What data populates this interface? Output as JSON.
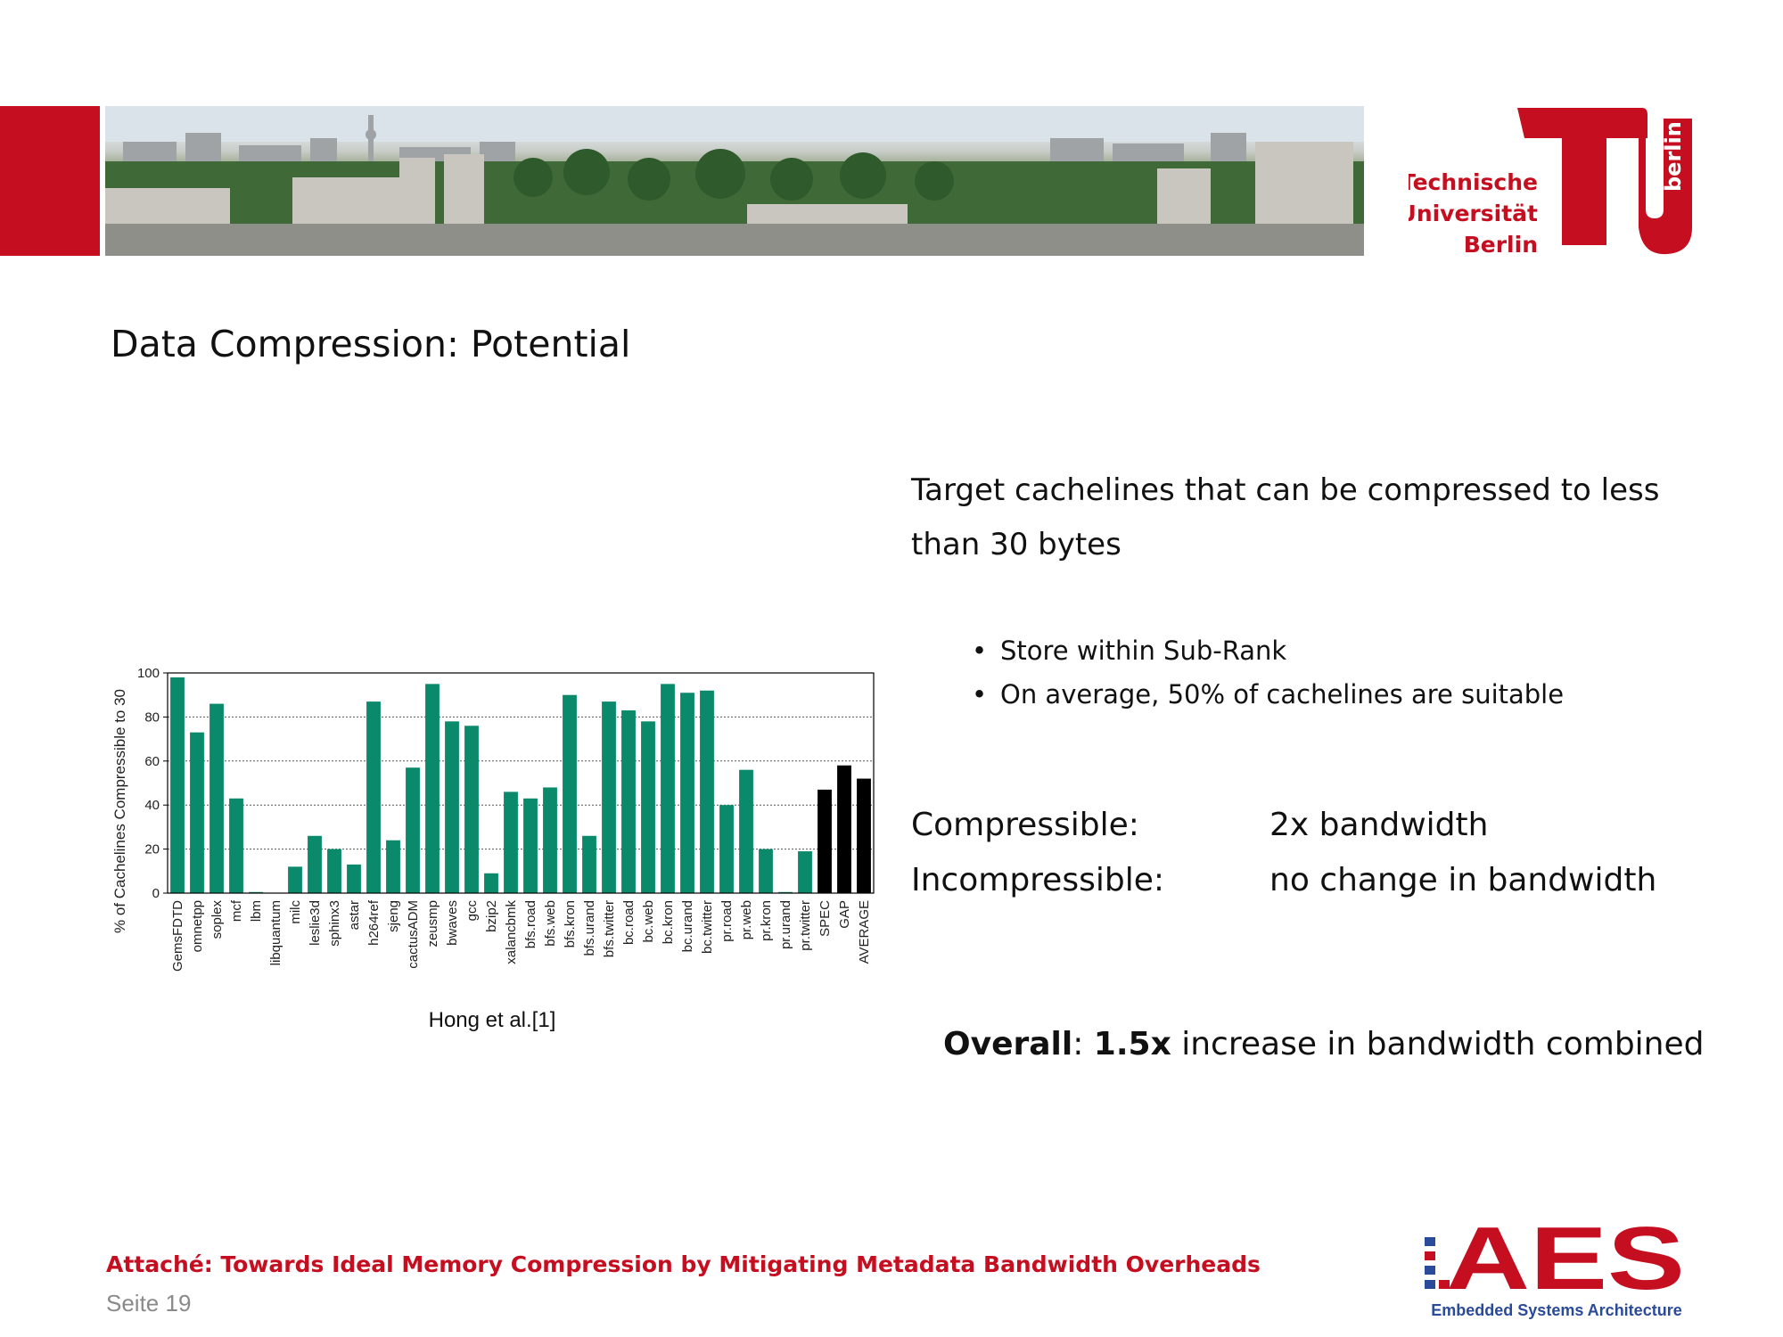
{
  "header": {
    "logo_tu": {
      "icon": "tu-berlin-logo",
      "line1": "Technische",
      "line2": "Universität",
      "line3": "Berlin",
      "side": "berlin",
      "color": "#c50e1f"
    },
    "banner": {
      "icon": "berlin-skyline-photo"
    }
  },
  "title": "Data Compression: Potential",
  "right": {
    "target_text": "Target cachelines that can be compressed to less than 30 bytes",
    "bullets": [
      "Store within Sub-Rank",
      "On average, 50% of cachelines are suitable"
    ],
    "compressible_label": "Compressible:",
    "compressible_value": "2x bandwidth",
    "incompressible_label": "Incompressible:",
    "incompressible_value": "no change in bandwidth",
    "overall_bold": "Overall",
    "overall_sep": ": ",
    "overall_value": "1.5x",
    "overall_rest": " increase in bandwidth combined"
  },
  "chart_data": {
    "type": "bar",
    "ylabel": "% of Cachelines Compressible to 30",
    "caption": "Hong et al.[1]",
    "ylim": [
      0,
      100
    ],
    "yticks": [
      0,
      20,
      40,
      60,
      80,
      100
    ],
    "grid": true,
    "colors": {
      "benchmark": "#0a8a6a",
      "summary": "#000000"
    },
    "categories": [
      "GemsFDTD",
      "omnetpp",
      "soplex",
      "mcf",
      "lbm",
      "libquantum",
      "milc",
      "leslie3d",
      "sphinx3",
      "astar",
      "h264ref",
      "sjeng",
      "cactusADM",
      "zeusmp",
      "bwaves",
      "gcc",
      "bzip2",
      "xalancbmk",
      "bfs.road",
      "bfs.web",
      "bfs.kron",
      "bfs.urand",
      "bfs.twitter",
      "bc.road",
      "bc.web",
      "bc.kron",
      "bc.urand",
      "bc.twitter",
      "pr.road",
      "pr.web",
      "pr.kron",
      "pr.urand",
      "pr.twitter",
      "SPEC",
      "GAP",
      "AVERAGE"
    ],
    "values": [
      98,
      73,
      86,
      43,
      0.5,
      0,
      12,
      26,
      20,
      13,
      87,
      24,
      57,
      95,
      78,
      76,
      9,
      46,
      43,
      48,
      90,
      26,
      87,
      83,
      78,
      95,
      91,
      92,
      40,
      56,
      20,
      0.5,
      19,
      47,
      58,
      52
    ],
    "summary_categories": [
      "SPEC",
      "GAP",
      "AVERAGE"
    ]
  },
  "footer": {
    "title": "Attaché: Towards Ideal Memory Compression by Mitigating Metadata Bandwidth Overheads",
    "page": "Seite 19",
    "aes": {
      "icon": "aes-logo",
      "text": "AES",
      "subtitle": "Embedded Systems Architecture",
      "color": "#c50e1f",
      "accent": "#2a4a9a"
    }
  }
}
